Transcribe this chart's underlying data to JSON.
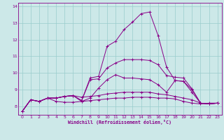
{
  "xlabel": "Windchill (Refroidissement éolien,°C)",
  "bg_color": "#cce8e8",
  "line_color": "#880088",
  "grid_color": "#99cccc",
  "ylim": [
    7.5,
    14.2
  ],
  "xlim": [
    -0.5,
    23.5
  ],
  "yticks": [
    8,
    9,
    10,
    11,
    12,
    13,
    14
  ],
  "xticks": [
    0,
    1,
    2,
    3,
    4,
    5,
    6,
    7,
    8,
    9,
    10,
    11,
    12,
    13,
    14,
    15,
    16,
    17,
    18,
    19,
    20,
    21,
    22,
    23
  ],
  "lines": [
    [
      7.7,
      8.4,
      8.3,
      8.5,
      8.3,
      8.25,
      8.25,
      8.3,
      8.35,
      8.4,
      8.45,
      8.5,
      8.5,
      8.55,
      8.55,
      8.55,
      8.5,
      8.5,
      8.45,
      8.3,
      8.2,
      8.15,
      8.2,
      8.2
    ],
    [
      7.7,
      8.4,
      8.3,
      8.5,
      8.5,
      8.6,
      8.65,
      8.55,
      8.6,
      8.65,
      8.75,
      8.8,
      8.85,
      8.85,
      8.85,
      8.85,
      8.75,
      8.7,
      8.6,
      8.5,
      8.4,
      8.2,
      8.15,
      8.2
    ],
    [
      7.7,
      8.4,
      8.3,
      8.5,
      8.5,
      8.6,
      8.65,
      8.3,
      8.5,
      9.1,
      9.6,
      9.9,
      9.7,
      9.7,
      9.65,
      9.6,
      9.3,
      8.85,
      9.55,
      9.5,
      9.0,
      8.2,
      8.15,
      8.2
    ],
    [
      7.7,
      8.4,
      8.3,
      8.5,
      8.5,
      8.6,
      8.65,
      8.35,
      9.6,
      9.65,
      10.3,
      10.6,
      10.8,
      10.8,
      10.8,
      10.75,
      10.5,
      9.85,
      9.75,
      9.7,
      9.05,
      8.2,
      8.15,
      8.2
    ],
    [
      7.7,
      8.4,
      8.3,
      8.5,
      8.5,
      8.6,
      8.65,
      8.35,
      9.7,
      9.8,
      11.6,
      11.9,
      12.6,
      13.05,
      13.55,
      13.65,
      12.25,
      10.35,
      9.55,
      9.5,
      8.85,
      8.2,
      8.15,
      8.2
    ]
  ]
}
